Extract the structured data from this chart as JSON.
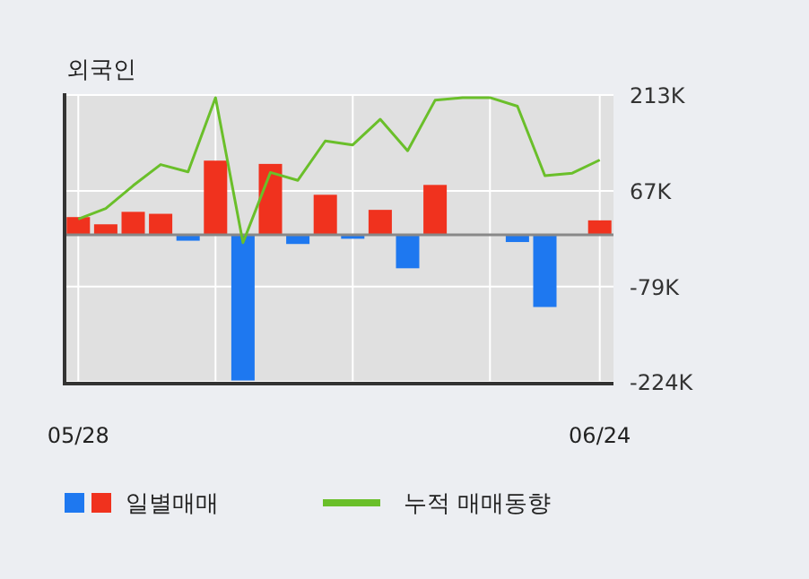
{
  "chart_data": {
    "type": "bar",
    "title": "외국인",
    "categories": [
      "05/28",
      null,
      null,
      null,
      null,
      null,
      null,
      null,
      null,
      null,
      null,
      null,
      null,
      null,
      null,
      null,
      null,
      null,
      null,
      "06/24"
    ],
    "series": [
      {
        "name": "일별매매",
        "colors": [
          "#f0321e",
          "#f0321e",
          "#f0321e",
          "#f0321e",
          "#1e78f0",
          "#f0321e",
          "#1e78f0",
          "#f0321e",
          "#1e78f0",
          "#f0321e",
          "#1e78f0",
          "#f0321e",
          "#1e78f0",
          "#f0321e",
          "#f0321e",
          "#f0321e",
          "#1e78f0",
          "#1e78f0",
          "#f0321e",
          "#f0321e"
        ],
        "values": [
          27,
          16,
          35,
          32,
          -9,
          113,
          -222,
          108,
          -14,
          61,
          -6,
          38,
          -51,
          76,
          0,
          0,
          -11,
          -110,
          0,
          22
        ]
      },
      {
        "name": "누적 매매동향",
        "type": "line",
        "color": "#6abf2a",
        "values": [
          24,
          40,
          75,
          107,
          96,
          209,
          -12,
          95,
          83,
          143,
          137,
          176,
          128,
          205,
          209,
          209,
          196,
          90,
          94,
          114
        ]
      }
    ],
    "ylim": [
      -224,
      213
    ],
    "yticks": [
      {
        "value": 213,
        "label": "213K"
      },
      {
        "value": 67,
        "label": "67K"
      },
      {
        "value": -79,
        "label": "-79K"
      },
      {
        "value": -224,
        "label": "-224K"
      }
    ],
    "grid": true,
    "legend": "bottom"
  }
}
